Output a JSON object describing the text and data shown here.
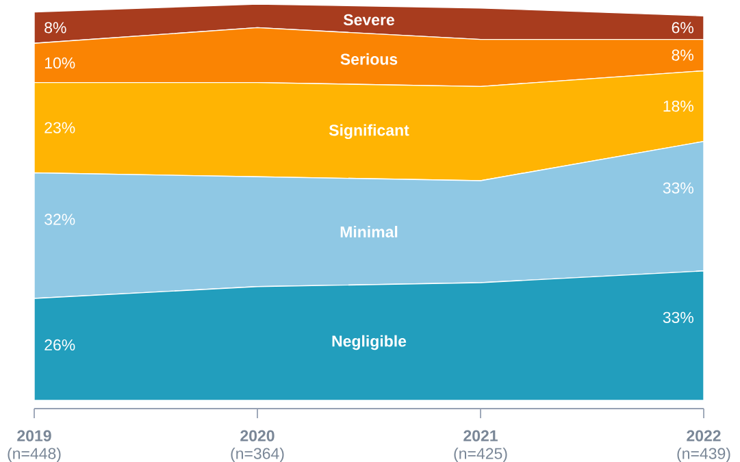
{
  "chart_data": {
    "type": "area",
    "stacked": true,
    "tick_labels": "x",
    "categories": [
      "**2019** (n=448)",
      "**2020** (n=364)",
      "**2021** (n=425)",
      "**2022** (n=439)"
    ],
    "series": [
      {
        "name": "Negligible",
        "color": "#229ebd",
        "values": [
          26,
          29,
          30,
          33
        ],
        "value_labels": [
          "26%",
          null,
          null,
          "33%"
        ]
      },
      {
        "name": "Minimal",
        "color": "#8fc8e4",
        "values": [
          32,
          28,
          26,
          33
        ],
        "value_labels": [
          "32%",
          null,
          null,
          "33%"
        ]
      },
      {
        "name": "Significant",
        "color": "#ffb403",
        "values": [
          23,
          24,
          24,
          18
        ],
        "value_labels": [
          "23%",
          null,
          null,
          "18%"
        ]
      },
      {
        "name": "Serious",
        "color": "#fa8403",
        "values": [
          10,
          14,
          12,
          8
        ],
        "value_labels": [
          "10%",
          null,
          null,
          "8%"
        ]
      },
      {
        "name": "Severe",
        "color": "#a83c1e",
        "values": [
          8,
          6,
          8,
          6
        ],
        "value_labels": [
          "8%",
          null,
          null,
          "6%"
        ]
      }
    ]
  }
}
